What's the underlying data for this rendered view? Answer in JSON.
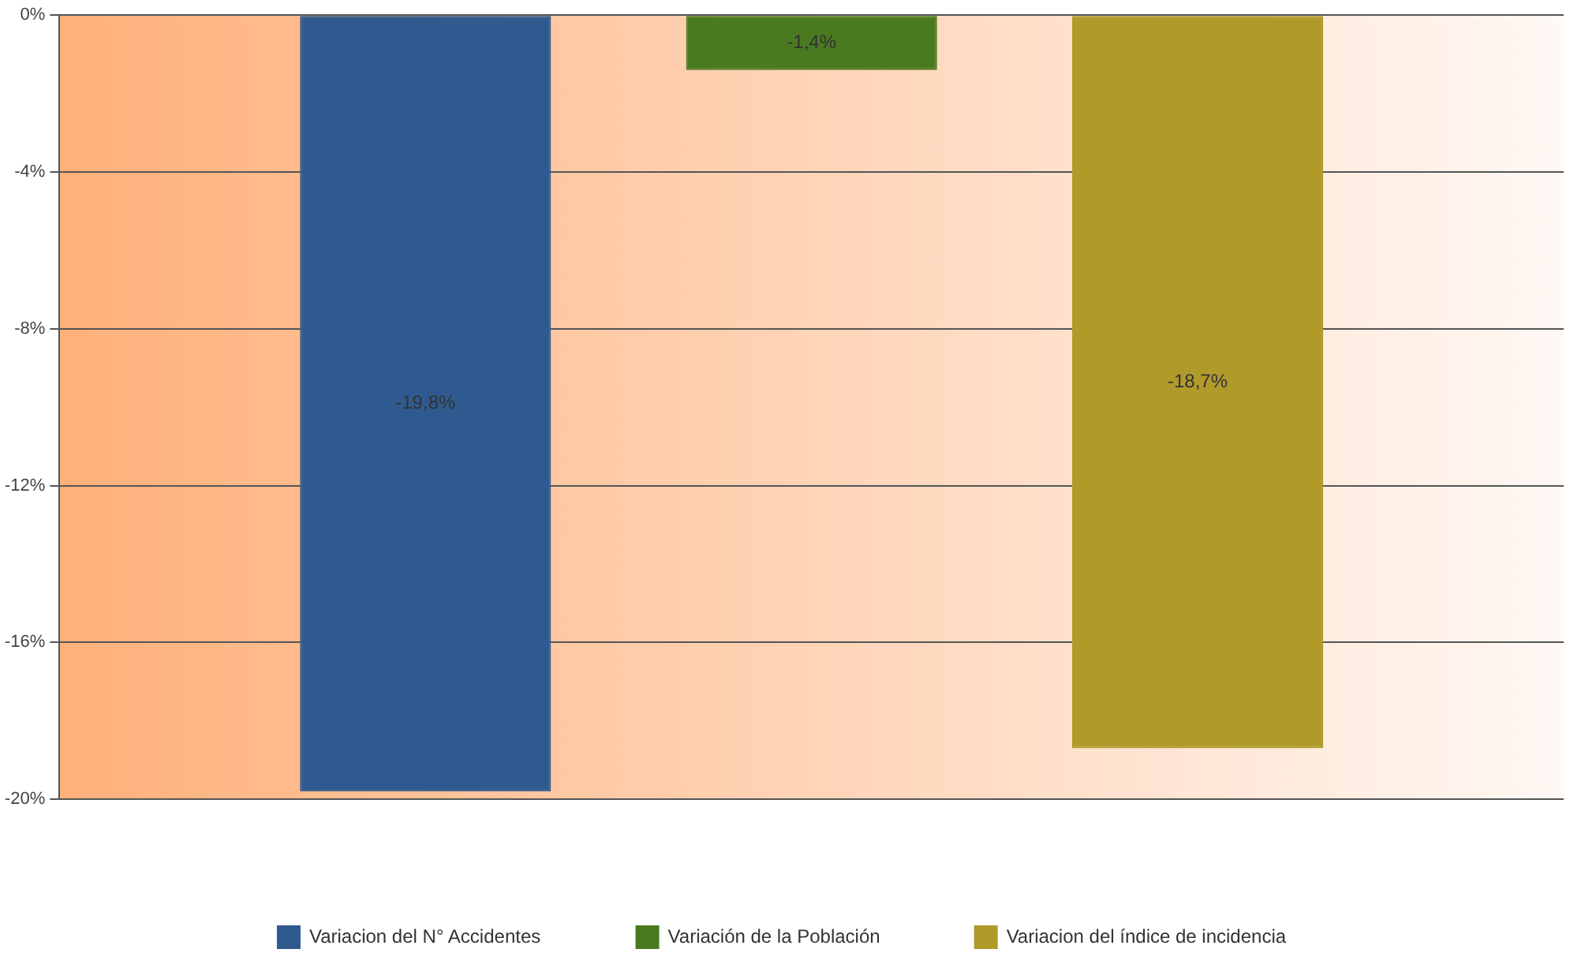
{
  "chart_data": {
    "type": "bar",
    "categories": [
      null
    ],
    "series": [
      {
        "name": "Variacion del N° Accidentes",
        "color": "#2f5a8f",
        "values": [
          -19.8
        ],
        "value_labels": [
          "-19,8%"
        ]
      },
      {
        "name": "Variación de la Población",
        "color": "#4a7a20",
        "values": [
          -1.4
        ],
        "value_labels": [
          "-1,4%"
        ]
      },
      {
        "name": "Variacion del índice de incidencia",
        "color": "#b09a2a",
        "values": [
          -18.7
        ],
        "value_labels": [
          "-18,7%"
        ]
      }
    ],
    "ylim": [
      -20,
      0
    ],
    "yticks": [
      {
        "value": 0,
        "label": "0%"
      },
      {
        "value": -4,
        "label": "-4%"
      },
      {
        "value": -8,
        "label": "-8%"
      },
      {
        "value": -12,
        "label": "-12%"
      },
      {
        "value": -16,
        "label": "-16%"
      },
      {
        "value": -20,
        "label": "-20%"
      }
    ],
    "grid": "y",
    "legend": "bottom"
  }
}
